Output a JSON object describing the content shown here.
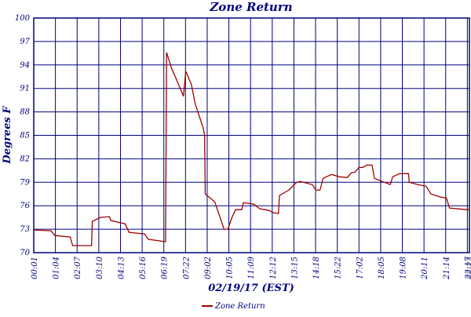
{
  "chart_data": {
    "type": "line",
    "title": "Zone Return",
    "x_label": "02/19/17 (EST)",
    "y_label": "Degrees F",
    "ylim": [
      70,
      100
    ],
    "yticks": [
      70,
      73,
      76,
      79,
      82,
      85,
      88,
      91,
      94,
      97,
      100
    ],
    "xlim": [
      1,
      1343
    ],
    "xticks": [
      {
        "value": 1,
        "label": "00:01"
      },
      {
        "value": 64,
        "label": "01:04"
      },
      {
        "value": 127,
        "label": "02:07"
      },
      {
        "value": 190,
        "label": "03:10"
      },
      {
        "value": 253,
        "label": "04:13"
      },
      {
        "value": 316,
        "label": "05:16"
      },
      {
        "value": 379,
        "label": "06:19"
      },
      {
        "value": 442,
        "label": "07:22"
      },
      {
        "value": 542,
        "label": "09:02"
      },
      {
        "value": 605,
        "label": "10:05"
      },
      {
        "value": 669,
        "label": "11:09"
      },
      {
        "value": 732,
        "label": "12:12"
      },
      {
        "value": 795,
        "label": "13:15"
      },
      {
        "value": 858,
        "label": "14:18"
      },
      {
        "value": 922,
        "label": "15:22"
      },
      {
        "value": 1022,
        "label": "17:02"
      },
      {
        "value": 1085,
        "label": "18:05"
      },
      {
        "value": 1148,
        "label": "19:08"
      },
      {
        "value": 1211,
        "label": "20:11"
      },
      {
        "value": 1274,
        "label": "21:14"
      },
      {
        "value": 1337,
        "label": "22:17"
      },
      {
        "value": 1343,
        "label": "22:23"
      }
    ],
    "grid": true,
    "legend": "bottom",
    "x": [
      1,
      51,
      62,
      107,
      114,
      169,
      171,
      194,
      221,
      225,
      266,
      278,
      323,
      334,
      384,
      387,
      402,
      420,
      436,
      443,
      469,
      487,
      523,
      530,
      533,
      564,
      591,
      602,
      614,
      625,
      643,
      648,
      678,
      696,
      723,
      735,
      750,
      753,
      780,
      803,
      814,
      848,
      859,
      871,
      880,
      905,
      932,
      968,
      986,
      1004,
      1022,
      1033,
      1045,
      1060,
      1067,
      1090,
      1113,
      1120,
      1140,
      1166,
      1168,
      1193,
      1217,
      1231,
      1260,
      1276,
      1285,
      1312,
      1333,
      1343
    ],
    "series": [
      {
        "name": "Zone Return",
        "color": "#a00000",
        "values": [
          72.9,
          72.8,
          72.2,
          72.0,
          70.9,
          70.9,
          74.0,
          74.5,
          74.6,
          74.1,
          73.7,
          72.6,
          72.4,
          71.7,
          71.4,
          95.6,
          93.5,
          91.7,
          90.0,
          93.2,
          91.5,
          89.0,
          86.0,
          85.0,
          77.5,
          76.5,
          73.0,
          73.0,
          74.5,
          75.5,
          75.5,
          76.4,
          76.2,
          75.6,
          75.4,
          75.1,
          75.0,
          77.3,
          78.0,
          79.0,
          79.1,
          78.7,
          78.0,
          78.0,
          79.5,
          80.0,
          79.7,
          79.6,
          80.2,
          80.3,
          80.9,
          80.9,
          81.2,
          81.2,
          79.5,
          79.1,
          78.7,
          79.7,
          80.1,
          80.1,
          79.0,
          78.7,
          78.5,
          77.5,
          77.1,
          77.0,
          75.7,
          75.6,
          75.5,
          75.5
        ]
      }
    ]
  }
}
